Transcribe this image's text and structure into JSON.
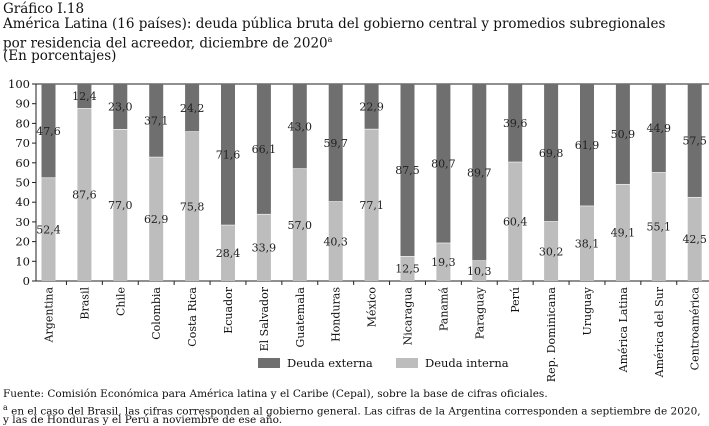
{
  "figure_label": "Gráfico I.18",
  "title_line1": "América Latina (16 países): deuda pública bruta del gobierno central y promedios subregionales",
  "title_line2": "por residencia del acreedor, diciembre de 2020",
  "title_sup": "a",
  "subtitle": "(En porcentajes)",
  "source": "Fuente: Comisión Económica para América latina y el Caribe (Cepal), sobre la base de cifras oficiales.",
  "note_marker": "a",
  "note_line1": " en el caso del Brasil, las cifras corresponden al gobierno general. Las cifras de la Argentina corresponden a septiembre de 2020,",
  "note_line2": "  y las de Honduras y el Perú a noviembre de ese año.",
  "colors": {
    "externa": "#6f6f6f",
    "interna": "#bdbdbd"
  },
  "chart_data": {
    "type": "bar",
    "stacked": true,
    "categories": [
      "Argentina",
      "Brasil",
      "Chile",
      "Colombia",
      "Costa Rica",
      "Ecuador",
      "El Salvador",
      "Guatemala",
      "Honduras",
      "México",
      "Nicaragua",
      "Panamá",
      "Paraguay",
      "Perú",
      "Rep. Dominicana",
      "Uruguay",
      "América Latina",
      "América del Sur",
      "Centroamérica"
    ],
    "series": [
      {
        "name": "Deuda interna",
        "color": "#bdbdbd",
        "values": [
          52.4,
          87.6,
          77.0,
          62.9,
          75.8,
          28.4,
          33.9,
          57.0,
          40.3,
          77.1,
          12.5,
          19.3,
          10.3,
          60.4,
          30.2,
          38.1,
          49.1,
          55.1,
          42.5
        ],
        "labels": [
          "52,4",
          "87,6",
          "77,0",
          "62,9",
          "75,8",
          "28,4",
          "33,9",
          "57,0",
          "40,3",
          "77,1",
          "12,5",
          "19,3",
          "10,3",
          "60,4",
          "30,2",
          "38,1",
          "49,1",
          "55,1",
          "42,5"
        ]
      },
      {
        "name": "Deuda externa",
        "color": "#6f6f6f",
        "values": [
          47.6,
          12.4,
          23.0,
          37.1,
          24.2,
          71.6,
          66.1,
          43.0,
          59.7,
          22.9,
          87.5,
          80.7,
          89.7,
          39.6,
          69.8,
          61.9,
          50.9,
          44.9,
          57.5
        ],
        "labels": [
          "47,6",
          "12,4",
          "23,0",
          "37,1",
          "24,2",
          "71,6",
          "66,1",
          "43,0",
          "59,7",
          "22,9",
          "87,5",
          "80,7",
          "89,7",
          "39,6",
          "69,8",
          "61,9",
          "50,9",
          "44,9",
          "57,5"
        ]
      }
    ],
    "ylim": [
      0,
      100
    ],
    "yticks": [
      0,
      10,
      20,
      30,
      40,
      50,
      60,
      70,
      80,
      90,
      100
    ],
    "grid": false,
    "legend": {
      "position": "bottom",
      "entries": [
        "Deuda externa",
        "Deuda interna"
      ]
    }
  }
}
